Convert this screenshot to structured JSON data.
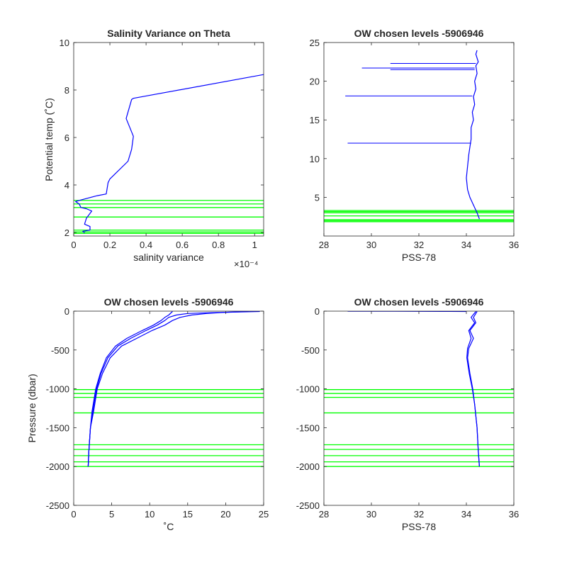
{
  "figure": {
    "background": "#ffffff",
    "axis_color": "#262626",
    "data_color": "#0000ff",
    "level_color": "#00ff00"
  },
  "chart_data": [
    {
      "type": "line",
      "title": "Salinity Variance on Theta",
      "xlabel": "salinity variance",
      "ylabel": "Potential temp (˚C)",
      "x_exponent": "×10⁻⁴",
      "xlim": [
        0,
        1.05
      ],
      "ylim": [
        1.85,
        10
      ],
      "xticks": [
        0,
        0.2,
        0.4,
        0.6,
        0.8,
        1
      ],
      "xtick_labels": [
        "0",
        "0.2",
        "0.4",
        "0.6",
        "0.8",
        "1"
      ],
      "yticks": [
        2,
        4,
        6,
        8,
        10
      ],
      "ytick_labels": [
        "2",
        "4",
        "6",
        "8",
        "10"
      ],
      "series": [
        {
          "color": "#0000ff",
          "x": [
            0.06,
            0.05,
            0.09,
            0.09,
            0.06,
            0.07,
            0.1,
            0.07,
            0.04,
            0.03,
            0.01,
            0.03,
            0.08,
            0.13,
            0.18,
            0.19,
            0.2,
            0.3,
            0.32,
            0.33,
            0.29,
            0.32,
            0.33,
            1.05
          ],
          "y": [
            1.98,
            2.05,
            2.1,
            2.25,
            2.35,
            2.6,
            2.9,
            3.0,
            3.05,
            3.2,
            3.3,
            3.35,
            3.45,
            3.55,
            3.62,
            4.1,
            4.25,
            5.0,
            5.5,
            6.05,
            6.8,
            7.6,
            7.65,
            8.65
          ]
        }
      ],
      "levels": [
        1.96,
        2.02,
        2.1,
        2.65,
        3.05,
        3.2,
        3.35
      ],
      "grid": false
    },
    {
      "type": "line",
      "title": "OW chosen levels -5906946",
      "xlabel": "PSS-78",
      "ylabel": "",
      "xlim": [
        28,
        36
      ],
      "ylim": [
        0,
        25
      ],
      "xticks": [
        28,
        30,
        32,
        34,
        36
      ],
      "xtick_labels": [
        "28",
        "30",
        "32",
        "34",
        "36"
      ],
      "yticks": [
        5,
        10,
        15,
        20,
        25
      ],
      "ytick_labels": [
        "5",
        "10",
        "15",
        "20",
        "25"
      ],
      "series": [
        {
          "color": "#0000ff",
          "x": [
            34.55,
            34.45,
            34.3,
            34.15,
            34.05,
            34.0,
            34.05,
            34.1,
            34.15,
            34.2,
            34.2,
            34.3,
            34.25,
            34.35,
            34.3,
            34.4,
            34.35,
            34.45,
            34.4,
            34.5,
            34.4,
            34.45
          ],
          "y": [
            2.2,
            3.0,
            4.0,
            5.0,
            6.0,
            7.5,
            9.0,
            10.5,
            11.5,
            12.5,
            14.0,
            15.0,
            16.0,
            17.0,
            18.0,
            19.0,
            20.0,
            21.0,
            22.0,
            22.5,
            23.5,
            24.0
          ]
        }
      ],
      "spikes": [
        {
          "x_from": 34.2,
          "x_to": 29.0,
          "y": 12.0
        },
        {
          "x_from": 34.25,
          "x_to": 28.9,
          "y": 18.1
        },
        {
          "x_from": 34.35,
          "x_to": 30.8,
          "y": 21.5
        },
        {
          "x_from": 34.35,
          "x_to": 29.6,
          "y": 21.7
        },
        {
          "x_from": 34.4,
          "x_to": 30.8,
          "y": 22.3
        }
      ],
      "levels": [
        1.85,
        2.0,
        2.1,
        2.6,
        3.0,
        3.15,
        3.3
      ],
      "grid": false
    },
    {
      "type": "line",
      "title": "OW chosen levels -5906946",
      "xlabel": "˚C",
      "ylabel": "Pressure (dbar)",
      "xlim": [
        0,
        25
      ],
      "ylim": [
        -2500,
        0
      ],
      "xticks": [
        0,
        5,
        10,
        15,
        20,
        25
      ],
      "xtick_labels": [
        "0",
        "5",
        "10",
        "15",
        "20",
        "25"
      ],
      "yticks": [
        -2500,
        -2000,
        -1500,
        -1000,
        -500,
        0
      ],
      "ytick_labels": [
        "-2500",
        "-2000",
        "-1500",
        "-1000",
        "-500",
        "0"
      ],
      "series": [
        {
          "color": "#0000ff",
          "x": [
            1.9,
            2.0,
            2.2,
            2.5,
            3.0,
            3.6,
            4.5,
            5.8,
            7.5,
            9.5,
            11.0,
            12.0,
            12.5,
            13.5,
            15.0,
            18.0,
            22.0,
            24.5
          ],
          "y": [
            -2000,
            -1800,
            -1500,
            -1300,
            -1000,
            -800,
            -600,
            -450,
            -350,
            -250,
            -180,
            -120,
            -80,
            -50,
            -30,
            -20,
            -10,
            -5
          ]
        },
        {
          "color": "#0000ff",
          "x": [
            1.9,
            2.0,
            2.2,
            2.6,
            3.1,
            3.8,
            4.8,
            6.3,
            8.3,
            10.3,
            12.0,
            13.0,
            14.0,
            15.5,
            17.5,
            20.0,
            23.0
          ],
          "y": [
            -2000,
            -1800,
            -1500,
            -1300,
            -1000,
            -800,
            -600,
            -450,
            -350,
            -250,
            -180,
            -120,
            -80,
            -50,
            -30,
            -15,
            -5
          ]
        },
        {
          "color": "#0000ff",
          "x": [
            1.9,
            2.0,
            2.2,
            2.4,
            2.9,
            3.5,
            4.3,
            5.5,
            7.0,
            9.0,
            10.5,
            11.5,
            12.0,
            12.5,
            13.0
          ],
          "y": [
            -2000,
            -1800,
            -1500,
            -1300,
            -1000,
            -800,
            -600,
            -450,
            -350,
            -250,
            -180,
            -120,
            -80,
            -50,
            -5
          ]
        }
      ],
      "levels": [
        -1010,
        -1060,
        -1110,
        -1310,
        -1720,
        -1780,
        -1860,
        -1940,
        -2000
      ],
      "grid": false
    },
    {
      "type": "line",
      "title": "OW chosen levels -5906946",
      "xlabel": "PSS-78",
      "ylabel": "",
      "xlim": [
        28,
        36
      ],
      "ylim": [
        -2500,
        0
      ],
      "xticks": [
        28,
        30,
        32,
        34,
        36
      ],
      "xtick_labels": [
        "28",
        "30",
        "32",
        "34",
        "36"
      ],
      "yticks": [
        -2500,
        -2000,
        -1500,
        -1000,
        -500,
        0
      ],
      "ytick_labels": [
        "-2500",
        "-2000",
        "-1500",
        "-1000",
        "-500",
        "0"
      ],
      "series": [
        {
          "color": "#0000ff",
          "x": [
            34.55,
            34.5,
            34.45,
            34.35,
            34.25,
            34.12,
            34.02,
            34.05,
            34.2,
            34.1,
            34.35,
            34.2,
            34.4
          ],
          "y": [
            -2000,
            -1800,
            -1500,
            -1200,
            -1000,
            -800,
            -600,
            -480,
            -350,
            -250,
            -150,
            -80,
            -5
          ]
        },
        {
          "color": "#0000ff",
          "x": [
            34.55,
            34.5,
            34.45,
            34.35,
            34.27,
            34.15,
            34.05,
            34.1,
            34.3,
            34.15,
            34.4,
            34.3,
            34.45
          ],
          "y": [
            -2000,
            -1800,
            -1500,
            -1200,
            -1000,
            -800,
            -600,
            -480,
            -350,
            -250,
            -150,
            -80,
            -5
          ]
        },
        {
          "color": "#0000ff",
          "x": [
            34.0,
            33.0,
            32.0,
            31.0,
            30.0,
            29.0
          ],
          "y": [
            -5,
            -4,
            -3,
            -2,
            -1,
            -1
          ]
        }
      ],
      "levels": [
        -1010,
        -1060,
        -1110,
        -1310,
        -1720,
        -1780,
        -1860,
        -1940,
        -2000
      ],
      "grid": false
    }
  ]
}
